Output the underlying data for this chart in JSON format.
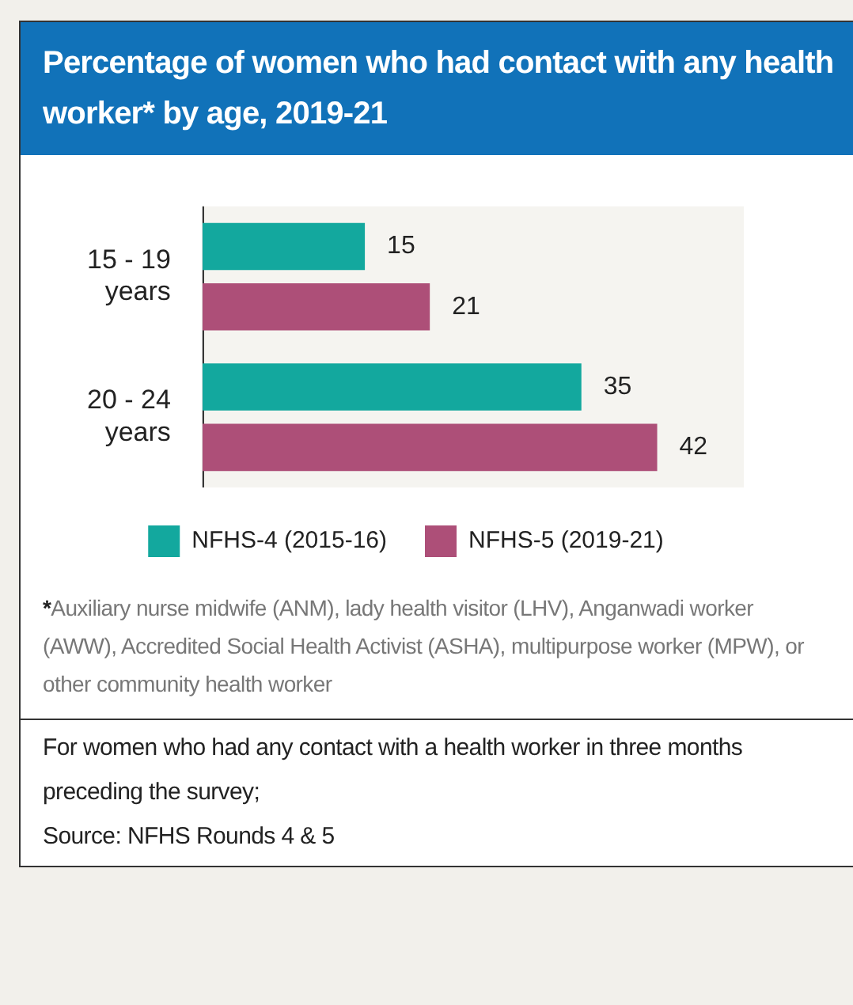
{
  "chart_data": {
    "type": "bar",
    "orientation": "horizontal",
    "title": "Percentage of women who had contact with any health worker* by age, 2019-21",
    "categories": [
      "15 - 19 years",
      "20 - 24 years"
    ],
    "series": [
      {
        "name": "NFHS-4 (2015-16)",
        "color": "#13a89e",
        "values": [
          15,
          35
        ]
      },
      {
        "name": "NFHS-5 (2019-21)",
        "color": "#ad4f78",
        "values": [
          21,
          42
        ]
      }
    ],
    "tick_labels": "y",
    "data_labels": true,
    "legend": "bottom",
    "annotations": [
      "*Auxiliary nurse midwife (ANM), lady health visitor (LHV), Anganwadi worker (AWW), Accredited Social Health Activist (ASHA), multipurpose worker (MPW), or other community health worker",
      "For women who had any contact with a health worker in three months preceding the survey;",
      "Source: NFHS Rounds 4 & 5"
    ]
  }
}
